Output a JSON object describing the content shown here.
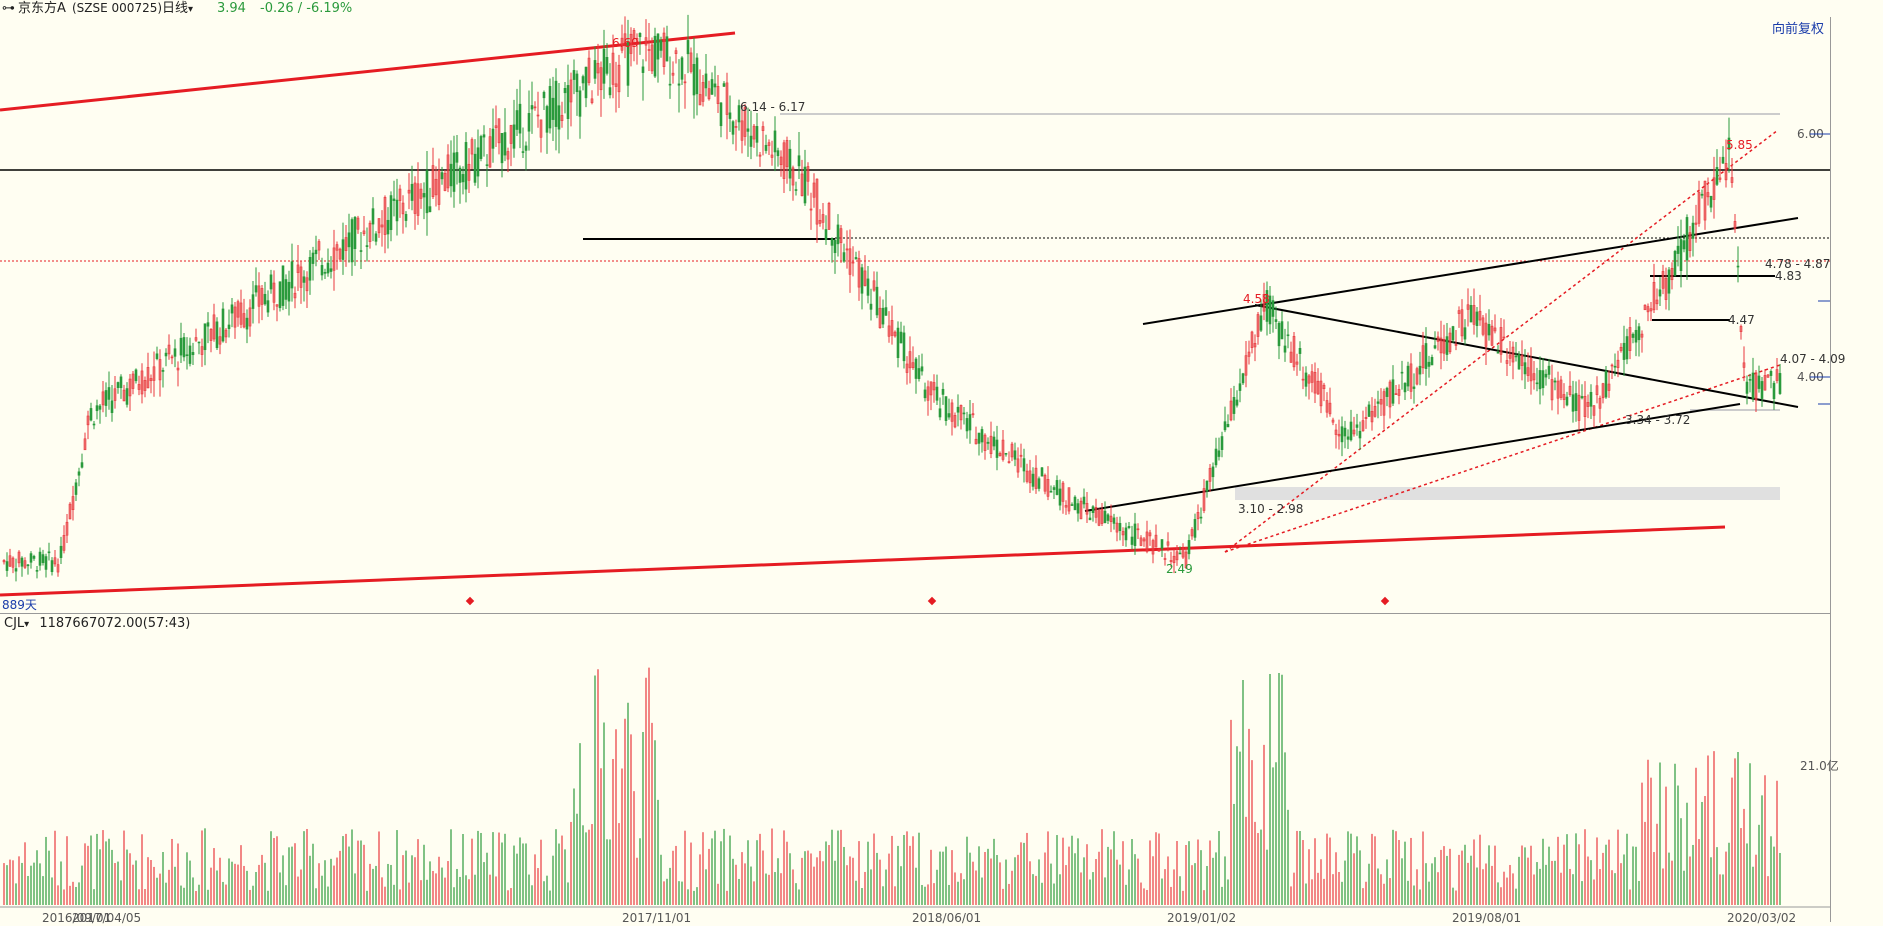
{
  "header": {
    "stock_name": "京东方A",
    "code": "(SZSE 000725)",
    "period": "日线",
    "price": "3.94",
    "change": "-0.26 / -6.19%"
  },
  "toolbar": {
    "fq_label": "向前复权"
  },
  "volume": {
    "label": "CJL",
    "value": "1187667072.00(57:43)",
    "axis_label": "21.0亿"
  },
  "corner_label": "889天",
  "colors": {
    "up": "#e8383d",
    "down": "#2b9a3c",
    "bg": "#fffef2",
    "trend_red": "#e51c23",
    "trend_black": "#000000"
  },
  "chart_data": {
    "type": "candlestick",
    "title": "",
    "x_ticks": [
      "2016/09/01",
      "2017/04/05",
      "2017/11/01",
      "2018/06/01",
      "2019/01/02",
      "2019/08/01",
      "2020/03/02"
    ],
    "y_ticks": [
      "6.00",
      "4.00"
    ],
    "last_close": 3.94,
    "annotations": [
      "6.69",
      "6.14 - 6.17",
      "5.85",
      "4.58",
      "4.78 - 4.87",
      "4.83",
      "4.47",
      "4.07 - 4.09",
      "3.34 - 3.72",
      "3.10 - 2.98",
      "2.49"
    ],
    "key_prices": [
      {
        "date": "2016/09/01",
        "price": 2.48
      },
      {
        "date": "2017/04/05",
        "price": 3.7
      },
      {
        "date": "2017/11/01",
        "price": 6.69
      },
      {
        "date": "2017/12/01",
        "price": 6.6
      },
      {
        "date": "2018/03/01",
        "price": 5.6
      },
      {
        "date": "2018/06/01",
        "price": 3.85
      },
      {
        "date": "2018/10/01",
        "price": 2.95
      },
      {
        "date": "2019/01/02",
        "price": 2.49
      },
      {
        "date": "2019/03/01",
        "price": 4.58
      },
      {
        "date": "2019/05/01",
        "price": 3.5
      },
      {
        "date": "2019/08/01",
        "price": 4.5
      },
      {
        "date": "2019/11/01",
        "price": 3.7
      },
      {
        "date": "2020/01/02",
        "price": 4.8
      },
      {
        "date": "2020/02/20",
        "price": 5.85
      },
      {
        "date": "2020/03/02",
        "price": 3.94
      }
    ],
    "volume_ticks": [
      "21.0亿"
    ]
  }
}
